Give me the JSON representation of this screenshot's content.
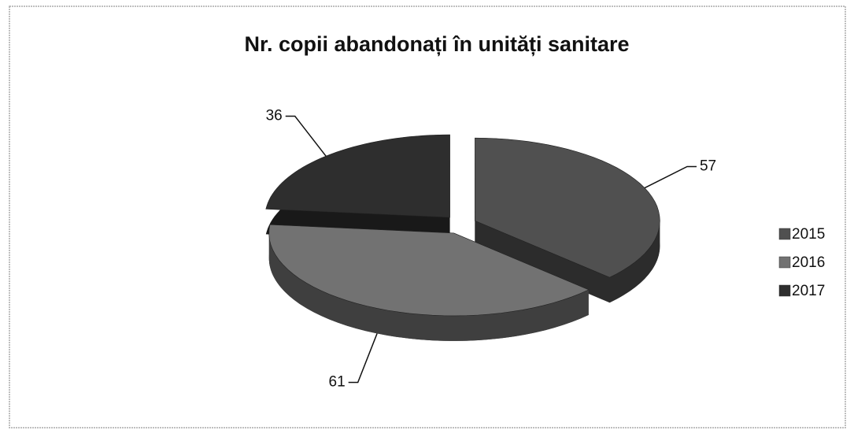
{
  "chart_data": {
    "type": "pie3d",
    "title": "Nr. copii abandonați în unități sanitare",
    "categories": [
      "2015",
      "2016",
      "2017"
    ],
    "values": [
      57,
      61,
      36
    ],
    "colors": [
      "#505050",
      "#727272",
      "#2e2e2e"
    ],
    "legend": "right"
  }
}
